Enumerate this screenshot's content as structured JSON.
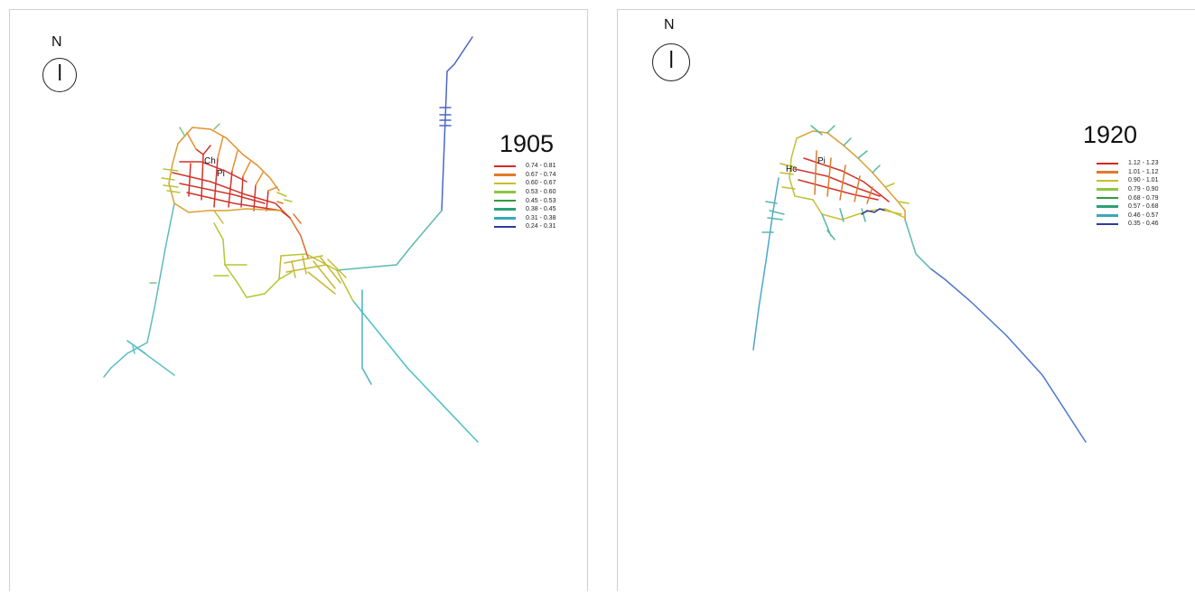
{
  "north_label": "N",
  "panels": [
    {
      "year": "1905",
      "place_labels": [
        "Ch",
        "Pi"
      ],
      "legend": [
        {
          "label": "0.74 - 0.81",
          "color": "#d42a20"
        },
        {
          "label": "0.67 - 0.74",
          "color": "#e07a2a"
        },
        {
          "label": "0.60 - 0.67",
          "color": "#c9be2e"
        },
        {
          "label": "0.53 - 0.60",
          "color": "#8ec63f"
        },
        {
          "label": "0.45 - 0.53",
          "color": "#2f9e3a"
        },
        {
          "label": "0.38 - 0.45",
          "color": "#2aa07a"
        },
        {
          "label": "0.31 - 0.38",
          "color": "#3aa8b4"
        },
        {
          "label": "0.24 - 0.31",
          "color": "#2a3c9e"
        }
      ]
    },
    {
      "year": "1920",
      "place_labels": [
        "Hc",
        "Pi"
      ],
      "legend": [
        {
          "label": "1.12 - 1.23",
          "color": "#d42a20"
        },
        {
          "label": "1.01 - 1.12",
          "color": "#e07a2a"
        },
        {
          "label": "0.90 - 1.01",
          "color": "#c9be2e"
        },
        {
          "label": "0.79 - 0.90",
          "color": "#8ec63f"
        },
        {
          "label": "0.68 - 0.79",
          "color": "#2f9e3a"
        },
        {
          "label": "0.57 - 0.68",
          "color": "#2aa07a"
        },
        {
          "label": "0.46 - 0.57",
          "color": "#3aa8b4"
        },
        {
          "label": "0.35 - 0.46",
          "color": "#2a3c9e"
        }
      ]
    }
  ]
}
